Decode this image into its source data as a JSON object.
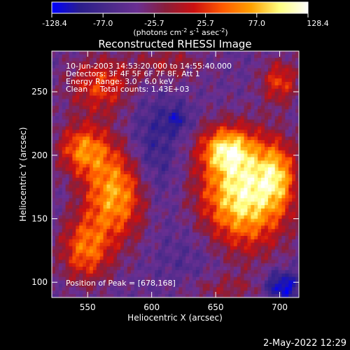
{
  "chart_data": {
    "type": "heatmap",
    "title": "Reconstructed RHESSI Image",
    "xlabel": "Heliocentric X (arcsec)",
    "ylabel": "Heliocentric Y (arcsec)",
    "xlim": [
      522,
      715
    ],
    "ylim": [
      88,
      282
    ],
    "xticks": [
      550,
      600,
      650,
      700
    ],
    "yticks": [
      100,
      150,
      200,
      250
    ],
    "colorbar": {
      "min": -128.4,
      "max": 128.4,
      "ticks": [
        "-128.4",
        "-77.0",
        "-25.7",
        "25.7",
        "77.0",
        "128.4"
      ],
      "unit_parts": [
        "(photons cm",
        "-2",
        " s",
        "-1",
        " asec",
        "-2",
        ")"
      ],
      "colors": [
        "#0000ff",
        "#2b1e8c",
        "#4a2a8a",
        "#6a2f92",
        "#8a1e3a",
        "#cc1010",
        "#ff5a00",
        "#ffa000",
        "#ffff80",
        "#ffffff"
      ]
    },
    "annotations": {
      "time": "10-Jun-2003 14:53:20.000 to 14:55:40.000",
      "detectors": "Detectors: 3F 4F 5F 6F 7F 8F, Att 1",
      "energy": "Energy Range: 3.0 - 6.0 keV",
      "clean": "Clean     Total counts: 1.43E+03",
      "peak": "Position of Peak = [678,168]"
    },
    "blobs": [
      {
        "x": 672,
        "y": 170,
        "sx": 24,
        "sy": 30,
        "a": 1.75
      },
      {
        "x": 658,
        "y": 205,
        "sx": 14,
        "sy": 12,
        "a": 1.1
      },
      {
        "x": 698,
        "y": 185,
        "sx": 10,
        "sy": 18,
        "a": 0.8
      },
      {
        "x": 572,
        "y": 170,
        "sx": 18,
        "sy": 26,
        "a": 1.35
      },
      {
        "x": 546,
        "y": 205,
        "sx": 14,
        "sy": 14,
        "a": 1.05
      },
      {
        "x": 548,
        "y": 125,
        "sx": 14,
        "sy": 18,
        "a": 1.0
      },
      {
        "x": 560,
        "y": 255,
        "sx": 18,
        "sy": 16,
        "a": 0.85
      },
      {
        "x": 612,
        "y": 272,
        "sx": 20,
        "sy": 10,
        "a": 0.5
      },
      {
        "x": 700,
        "y": 258,
        "sx": 10,
        "sy": 12,
        "a": 0.85
      },
      {
        "x": 620,
        "y": 228,
        "sx": 8,
        "sy": 8,
        "a": -0.5
      },
      {
        "x": 600,
        "y": 200,
        "sx": 14,
        "sy": 30,
        "a": -0.5
      },
      {
        "x": 702,
        "y": 97,
        "sx": 10,
        "sy": 8,
        "a": -0.9
      },
      {
        "x": 632,
        "y": 120,
        "sx": 20,
        "sy": 22,
        "a": -0.2
      },
      {
        "x": 655,
        "y": 95,
        "sx": 24,
        "sy": 8,
        "a": 0.4
      }
    ],
    "base_level": -0.05,
    "grid_cols": 72,
    "grid_rows": 72
  },
  "footer": {
    "timestamp": "2-May-2022 12:29"
  }
}
